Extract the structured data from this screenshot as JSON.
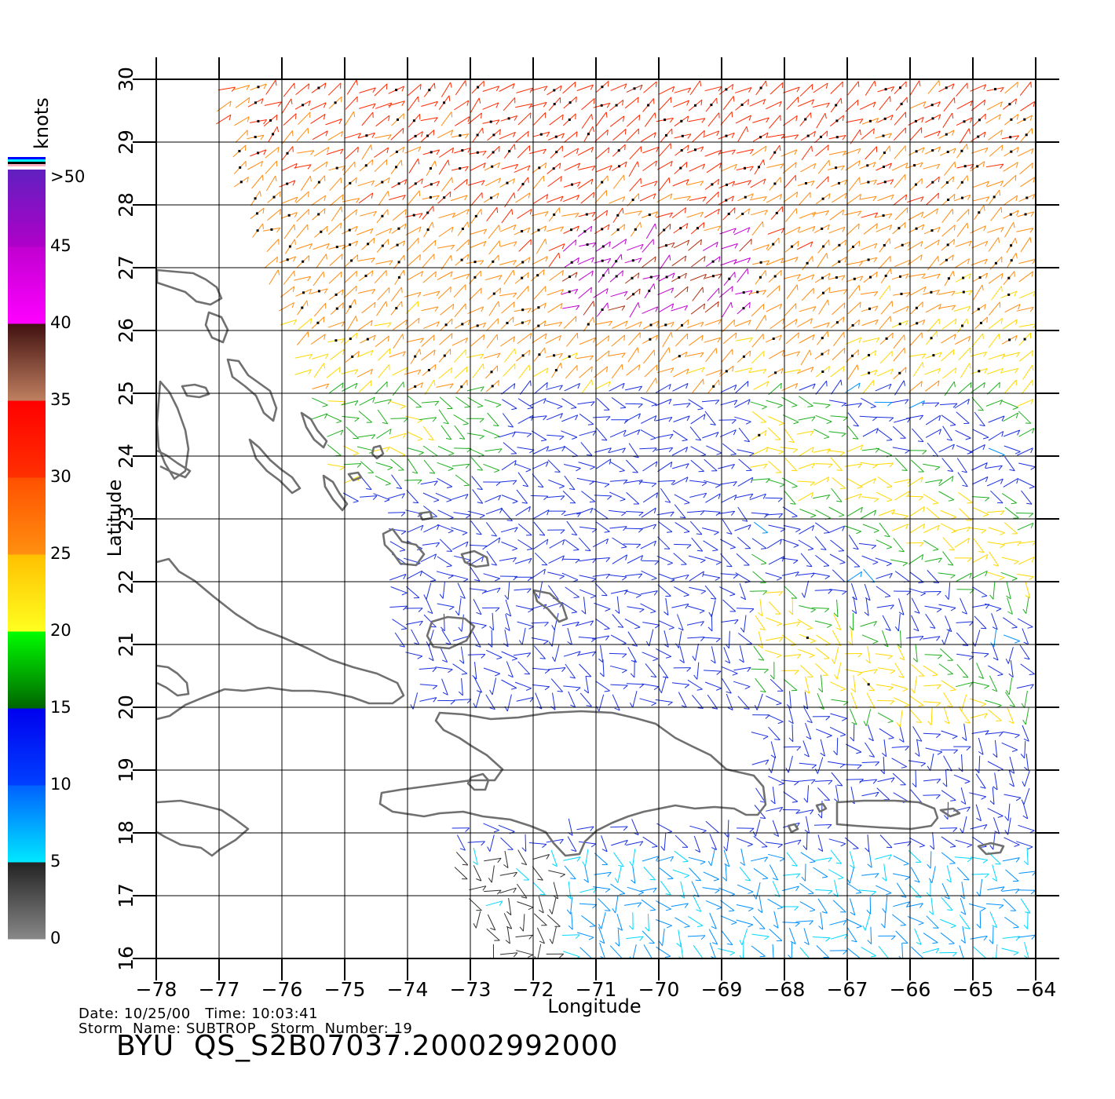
{
  "title_id": "BYU  QS_S2B07037.20002992000",
  "info": {
    "date_label": "Date:",
    "date": "10/25/00",
    "time_label": "Time:",
    "time": "10:03:41",
    "storm_name_label": "Storm  Name:",
    "storm_name": "SUBTROP",
    "storm_number_label": "Storm  Number:",
    "storm_number": "19"
  },
  "axes": {
    "xlabel": "Longitude",
    "ylabel": "Latitude",
    "lon_range": [
      -78,
      -64
    ],
    "lat_range": [
      16,
      30
    ],
    "lon_ticks": [
      "−78",
      "−77",
      "−76",
      "−75",
      "−74",
      "−73",
      "−72",
      "−71",
      "−70",
      "−69",
      "−68",
      "−67",
      "−66",
      "−65",
      "−64"
    ],
    "lat_ticks": [
      "16",
      "17",
      "18",
      "19",
      "20",
      "21",
      "22",
      "23",
      "24",
      "25",
      "26",
      "27",
      "28",
      "29",
      "30"
    ],
    "grid": true
  },
  "colorbar": {
    "unit_label": "knots",
    "labels": [
      ">50",
      "45",
      "40",
      "35",
      "30",
      "25",
      "20",
      "15",
      "10",
      "5",
      "0"
    ],
    "bands": [
      {
        "range": [
          0,
          5
        ],
        "from": "#888888",
        "to": "#222222"
      },
      {
        "range": [
          5,
          10
        ],
        "from": "#00e8ff",
        "to": "#0060ff"
      },
      {
        "range": [
          10,
          15
        ],
        "from": "#0040ff",
        "to": "#0000ee"
      },
      {
        "range": [
          15,
          20
        ],
        "from": "#006400",
        "to": "#00ff00"
      },
      {
        "range": [
          20,
          25
        ],
        "from": "#ffff20",
        "to": "#ffc000"
      },
      {
        "range": [
          25,
          30
        ],
        "from": "#ff9010",
        "to": "#ff5000"
      },
      {
        "range": [
          30,
          35
        ],
        "from": "#ff3000",
        "to": "#ff0000"
      },
      {
        "range": [
          35,
          40
        ],
        "from": "#c08060",
        "to": "#401010"
      },
      {
        "range": [
          40,
          45
        ],
        "from": "#ff00ff",
        "to": "#c000d0"
      },
      {
        "range": [
          45,
          50
        ],
        "from": "#b000c8",
        "to": "#6020c0"
      }
    ],
    "top_stripes": [
      "#0000ff",
      "#00ffff",
      "#000000",
      "#ffb0c0",
      "#ffffff"
    ]
  },
  "colors": {
    "coast": "#707070",
    "grid": "#000000"
  }
}
